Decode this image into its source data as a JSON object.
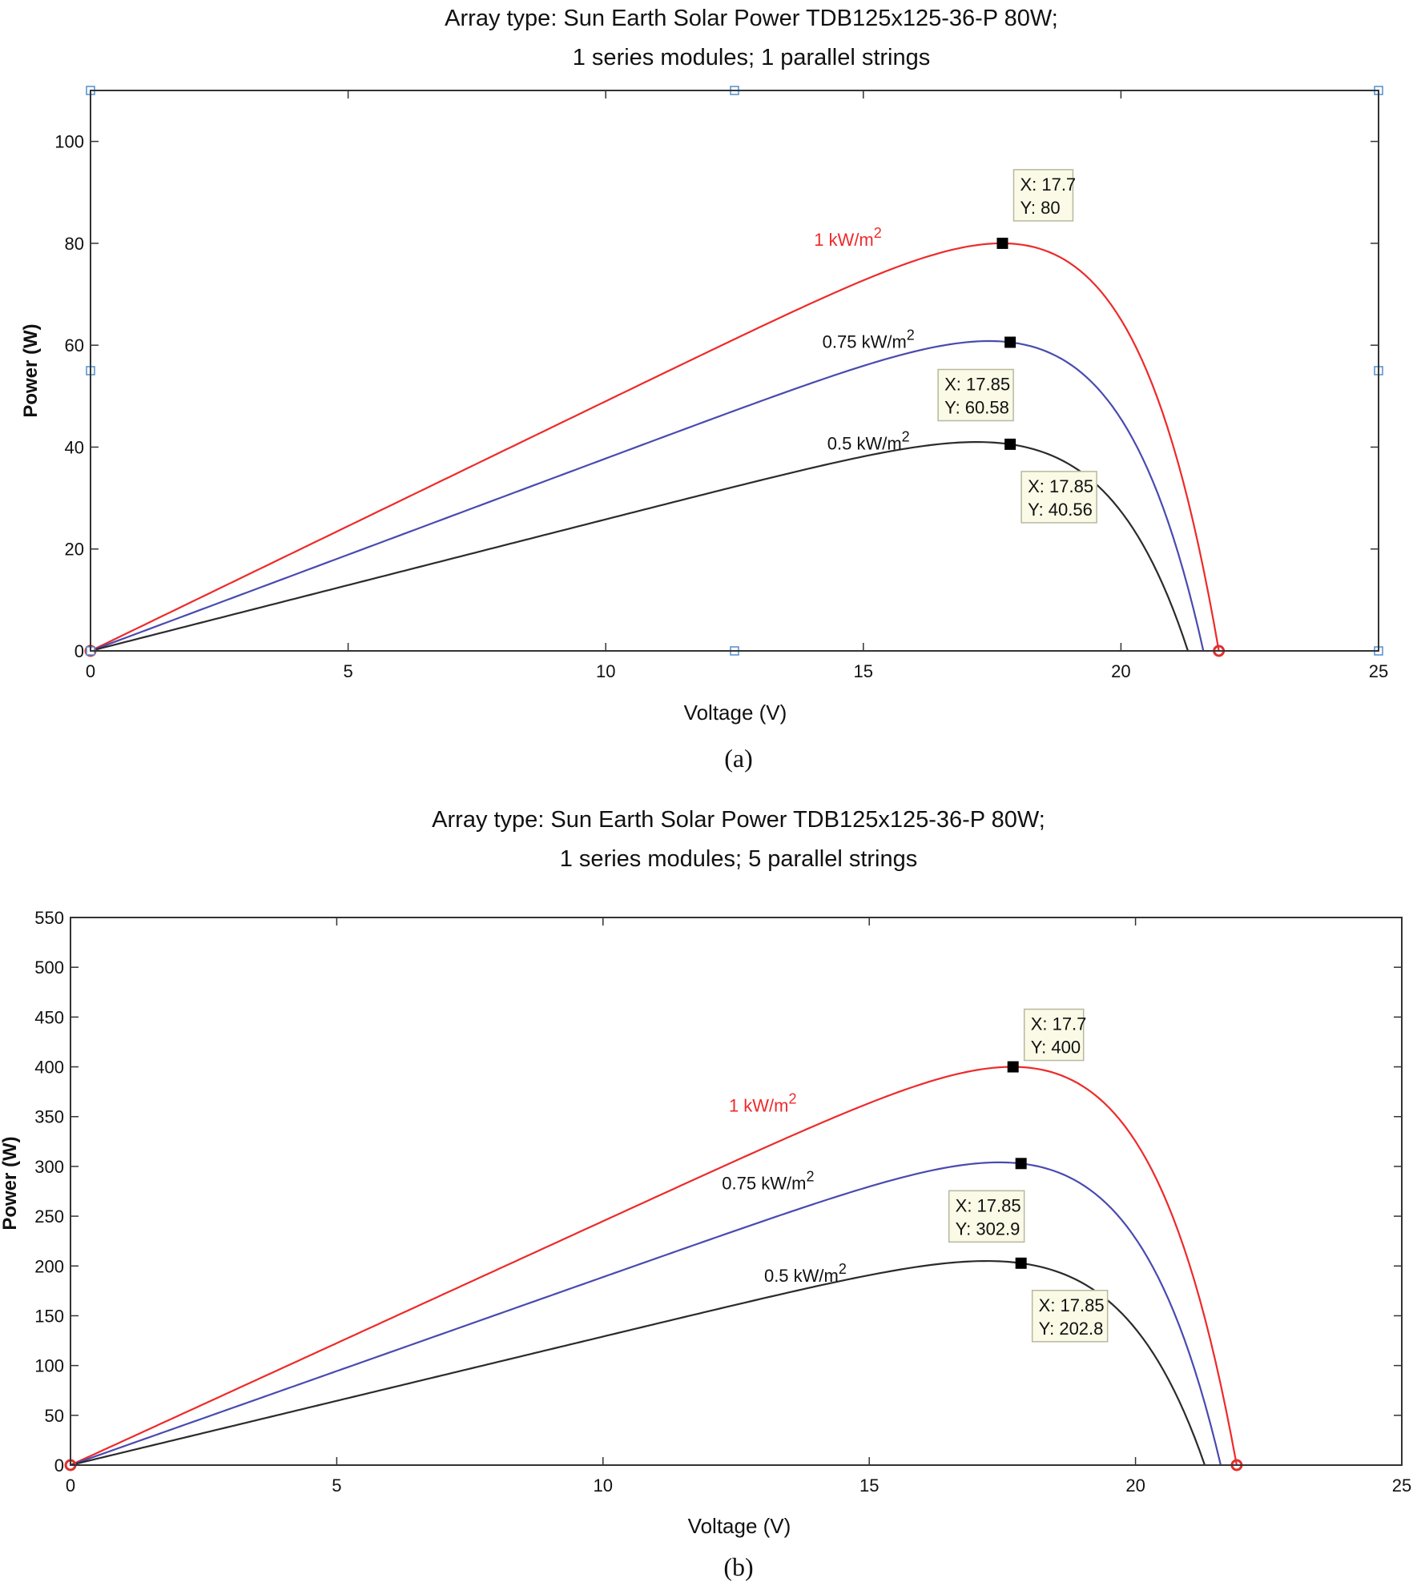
{
  "colors": {
    "series_1kw": "#ee2a2a",
    "series_075kw": "#4a4ab0",
    "series_05kw": "#2b2b2b",
    "axis": "#333333",
    "datatip_bg": "#fafae6",
    "datatip_border": "#b8b8a0",
    "selection_handle": "#4f8fd0",
    "endpoint_marker": "#e03030"
  },
  "chart_data": [
    {
      "id": "a",
      "type": "line",
      "caption": "(a)",
      "title_line1": "Array type: Sun Earth Solar Power TDB125x125-36-P 80W;",
      "title_line2": "1 series modules; 1 parallel strings",
      "xlabel": "Voltage (V)",
      "ylabel": "Power (W)",
      "xlim": [
        0,
        25
      ],
      "ylim": [
        0,
        110
      ],
      "xticks": [
        0,
        5,
        10,
        15,
        20,
        25
      ],
      "yticks": [
        0,
        20,
        40,
        60,
        80,
        100
      ],
      "grid": false,
      "series": [
        {
          "name": "1 kW/m2",
          "color_key": "series_1kw",
          "voc": 21.9,
          "vmp": 17.7,
          "pmp": 80,
          "label_text": "1 kW/m",
          "label_sup": "2",
          "label_at": [
            14.7,
            79.5
          ],
          "datatip": {
            "x": "X: 17.7",
            "y": "Y: 80"
          }
        },
        {
          "name": "0.75 kW/m2",
          "color_key": "series_075kw",
          "voc": 21.6,
          "vmp": 17.85,
          "pmp": 60.58,
          "label_text": "0.75 kW/m",
          "label_sup": "2",
          "label_at": [
            15.1,
            59.5
          ],
          "datatip": {
            "x": "X: 17.85",
            "y": "Y: 60.58"
          }
        },
        {
          "name": "0.5 kW/m2",
          "color_key": "series_05kw",
          "voc": 21.3,
          "vmp": 17.85,
          "pmp": 40.56,
          "label_text": "0.5 kW/m",
          "label_sup": "2",
          "label_at": [
            15.1,
            39.5
          ],
          "datatip": {
            "x": "X: 17.85",
            "y": "Y: 40.56"
          }
        }
      ]
    },
    {
      "id": "b",
      "type": "line",
      "caption": "(b)",
      "title_line1": "Array type: Sun Earth Solar Power TDB125x125-36-P 80W;",
      "title_line2": "1 series modules; 5 parallel strings",
      "xlabel": "Voltage (V)",
      "ylabel": "Power (W)",
      "xlim": [
        0,
        25
      ],
      "ylim": [
        0,
        550
      ],
      "xticks": [
        0,
        5,
        10,
        15,
        20,
        25
      ],
      "yticks": [
        0,
        50,
        100,
        150,
        200,
        250,
        300,
        350,
        400,
        450,
        500,
        550
      ],
      "grid": false,
      "series": [
        {
          "name": "1 kW/m2",
          "color_key": "series_1kw",
          "voc": 21.9,
          "vmp": 17.7,
          "pmp": 400,
          "label_text": "1 kW/m",
          "label_sup": "2",
          "label_at": [
            13.0,
            355
          ],
          "datatip": {
            "x": "X: 17.7",
            "y": "Y: 400"
          }
        },
        {
          "name": "0.75 kW/m2",
          "color_key": "series_075kw",
          "voc": 21.6,
          "vmp": 17.85,
          "pmp": 302.9,
          "label_text": "0.75 kW/m",
          "label_sup": "2",
          "label_at": [
            13.1,
            277
          ],
          "datatip": {
            "x": "X: 17.85",
            "y": "Y: 302.9"
          }
        },
        {
          "name": "0.5 kW/m2",
          "color_key": "series_05kw",
          "voc": 21.3,
          "vmp": 17.85,
          "pmp": 202.8,
          "label_text": "0.5 kW/m",
          "label_sup": "2",
          "label_at": [
            13.8,
            184
          ],
          "datatip": {
            "x": "X: 17.85",
            "y": "Y: 202.8"
          }
        }
      ]
    }
  ]
}
